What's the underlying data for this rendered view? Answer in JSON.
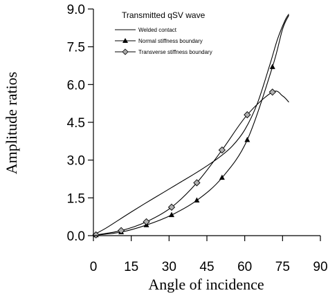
{
  "chart_data": {
    "type": "line",
    "title": "Transmitted qSV wave",
    "xlabel": "Angle of incidence",
    "ylabel": "Amplitude ratios",
    "xlim": [
      0,
      90
    ],
    "ylim": [
      0,
      9
    ],
    "xticks": [
      "0",
      "15",
      "30",
      "45",
      "60",
      "75",
      "90"
    ],
    "yticks": [
      "0.0",
      "1.5",
      "3.0",
      "4.5",
      "6.0",
      "7.5",
      "9.0"
    ],
    "legend_position": "top-left",
    "series": [
      {
        "name": "Welded contact",
        "marker": "none",
        "color": "#000000",
        "x": [
          1,
          5,
          10,
          15,
          20,
          25,
          30,
          35,
          40,
          45,
          50,
          55,
          60,
          65,
          70,
          73,
          76,
          77.5
        ],
        "y": [
          0.08,
          0.3,
          0.62,
          0.94,
          1.25,
          1.55,
          1.85,
          2.15,
          2.45,
          2.77,
          3.12,
          3.55,
          4.2,
          5.25,
          6.8,
          7.8,
          8.55,
          8.8
        ]
      },
      {
        "name": "Normal stiffness boundary",
        "marker": "triangle",
        "color": "#000000",
        "x": [
          1,
          11,
          21,
          31,
          41,
          51,
          61,
          71
        ],
        "y": [
          0.02,
          0.14,
          0.42,
          0.82,
          1.4,
          2.3,
          3.8,
          6.7
        ]
      },
      {
        "name": "Transverse stiffness boundary",
        "marker": "diamond",
        "color": "#000000",
        "x": [
          1,
          11,
          21,
          31,
          41,
          51,
          61,
          71
        ],
        "y": [
          0.03,
          0.2,
          0.55,
          1.13,
          2.1,
          3.4,
          4.8,
          5.7
        ]
      }
    ]
  }
}
